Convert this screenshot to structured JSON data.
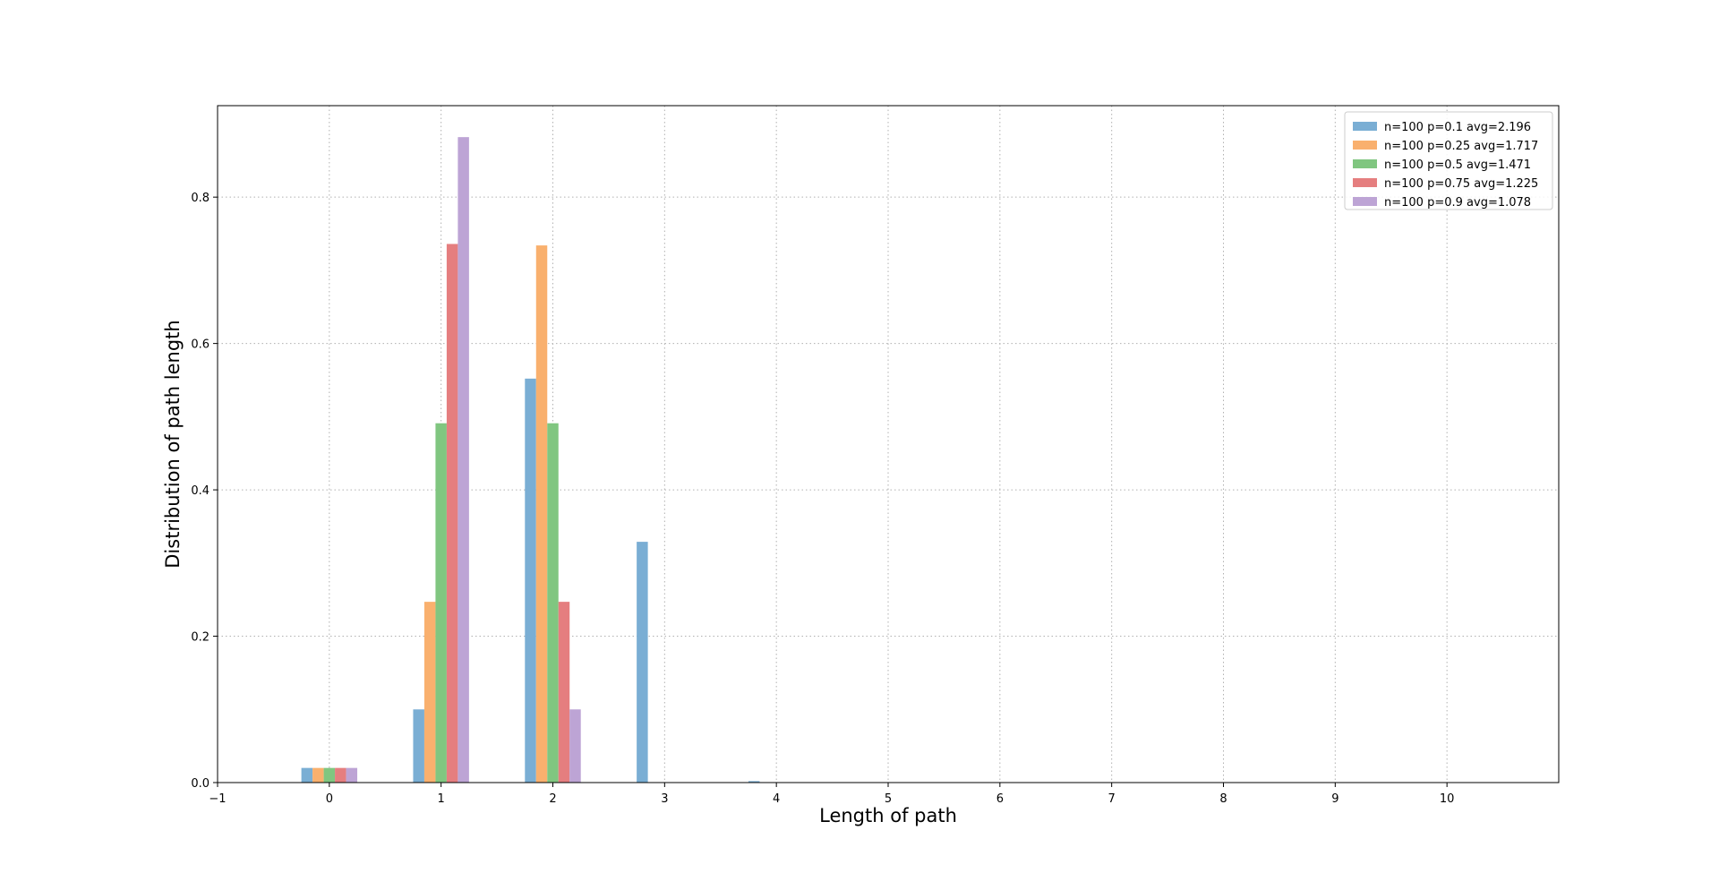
{
  "chart_data": {
    "type": "bar",
    "xlabel": "Length of path",
    "ylabel": "Distribution of path length",
    "xlim": [
      -1,
      11
    ],
    "ylim": [
      0,
      0.925
    ],
    "x_ticks": [
      "−1",
      "0",
      "1",
      "2",
      "3",
      "4",
      "5",
      "6",
      "7",
      "8",
      "9",
      "10"
    ],
    "y_ticks": [
      "0.0",
      "0.2",
      "0.4",
      "0.6",
      "0.8"
    ],
    "grid": "on (dotted, both axes)",
    "legend_position": "top-right",
    "categories": [
      0,
      1,
      2,
      3,
      4,
      5,
      6,
      7,
      8,
      9,
      10
    ],
    "bar_width": 0.1,
    "series": [
      {
        "name": "n=100 p=0.1 avg=2.196",
        "color": "#7aaed4",
        "values": [
          0.02,
          0.1,
          0.552,
          0.329,
          0.002,
          0,
          0,
          0,
          0,
          0,
          0
        ]
      },
      {
        "name": "n=100 p=0.25 avg=1.717",
        "color": "#f9b06e",
        "values": [
          0.02,
          0.247,
          0.734,
          0,
          0,
          0,
          0,
          0,
          0,
          0,
          0
        ]
      },
      {
        "name": "n=100 p=0.5 avg=1.471",
        "color": "#80c680",
        "values": [
          0.02,
          0.491,
          0.491,
          0,
          0,
          0,
          0,
          0,
          0,
          0,
          0
        ]
      },
      {
        "name": "n=100 p=0.75 avg=1.225",
        "color": "#e57e7f",
        "values": [
          0.02,
          0.736,
          0.247,
          0,
          0,
          0,
          0,
          0,
          0,
          0,
          0
        ]
      },
      {
        "name": "n=100 p=0.9 avg=1.078",
        "color": "#bda4d5",
        "values": [
          0.02,
          0.882,
          0.1,
          0,
          0,
          0,
          0,
          0,
          0,
          0,
          0
        ]
      }
    ]
  }
}
